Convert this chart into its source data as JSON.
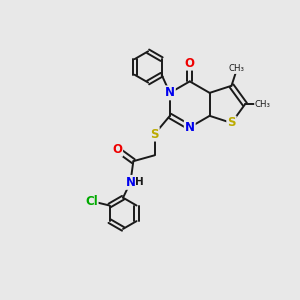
{
  "background_color": "#e8e8e8",
  "bond_color": "#1a1a1a",
  "bond_width": 1.4,
  "atom_colors": {
    "N": "#0000ee",
    "O": "#ee0000",
    "S": "#bbaa00",
    "Cl": "#00aa00",
    "C": "#1a1a1a",
    "H": "#1a1a1a"
  },
  "font_size_atom": 8.5
}
